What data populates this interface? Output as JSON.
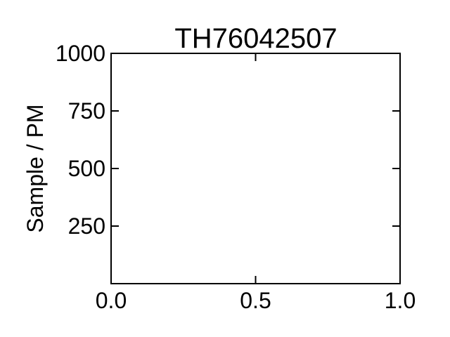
{
  "chart_data": {
    "type": "scatter",
    "title": "TH76042507",
    "xlabel": "",
    "ylabel": "Sample / PM",
    "xlim": [
      0.0,
      1.0
    ],
    "ylim": [
      0,
      1000
    ],
    "x_ticks": [
      0.0,
      0.5,
      1.0
    ],
    "x_tick_labels": [
      "0.0",
      "0.5",
      "1.0"
    ],
    "y_ticks": [
      250,
      500,
      750,
      1000
    ],
    "y_tick_labels": [
      "250",
      "500",
      "750",
      "1000"
    ],
    "series": [],
    "grid": false,
    "legend": "none",
    "colors": {
      "axis": "#000000",
      "background": "#ffffff"
    }
  }
}
